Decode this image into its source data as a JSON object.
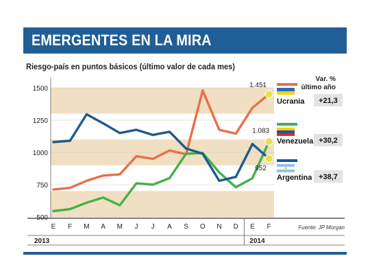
{
  "header": {
    "title": "EMERGENTES EN LA MIRA"
  },
  "subtitle": "Riesgo-país en puntos básicos (último valor de cada mes)",
  "source": "Fuente: JP Morgan",
  "var_header": [
    "Var. %",
    "último año"
  ],
  "colors": {
    "header_bg": "#1f5e96",
    "band": "#f0dfc2",
    "ucrania": "#e8704a",
    "venezuela": "#45b04a",
    "argentina": "#1d5a8e",
    "marker": "#e8e048"
  },
  "chart_data": {
    "type": "line",
    "title": "Riesgo-país en puntos básicos (último valor de cada mes)",
    "x": [
      "E",
      "F",
      "M",
      "A",
      "M",
      "J",
      "J",
      "A",
      "S",
      "O",
      "N",
      "D",
      "E",
      "F"
    ],
    "years": [
      {
        "label": "2013",
        "start": 0,
        "end": 11
      },
      {
        "label": "2014",
        "start": 12,
        "end": 13
      }
    ],
    "ylim": [
      500,
      1550
    ],
    "yticks": [
      500,
      750,
      1000,
      1250,
      1500
    ],
    "ytick_labels": [
      "500",
      "750",
      "1000",
      "1250",
      "1500"
    ],
    "series": [
      {
        "name": "Ucrania",
        "change": "+21,3",
        "last_label": "1.451",
        "values": [
          712,
          725,
          780,
          820,
          830,
          970,
          950,
          1015,
          985,
          1480,
          1175,
          1145,
          1345,
          1451
        ]
      },
      {
        "name": "Venezuela",
        "change": "+30,2",
        "last_label": "1.083",
        "values": [
          545,
          560,
          610,
          650,
          590,
          760,
          750,
          800,
          990,
          995,
          845,
          730,
          800,
          1083
        ]
      },
      {
        "name": "Argentina",
        "change": "+38,7",
        "last_label": "952",
        "values": [
          1080,
          1090,
          1295,
          1225,
          1150,
          1175,
          1135,
          1160,
          1030,
          990,
          780,
          810,
          1065,
          952
        ]
      }
    ]
  }
}
